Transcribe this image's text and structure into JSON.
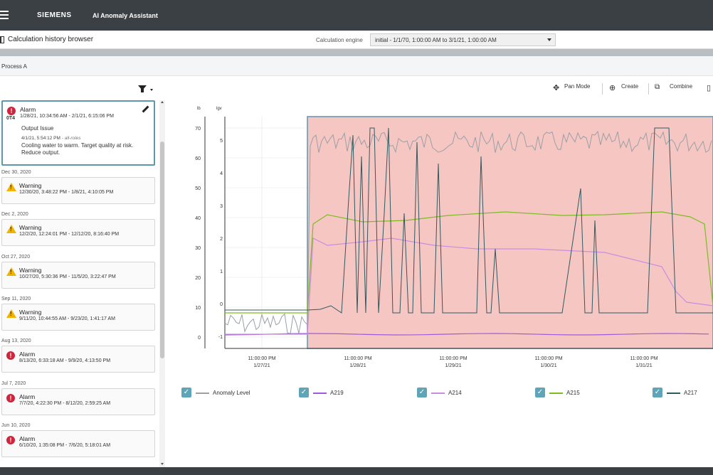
{
  "header": {
    "brand": "SIEMENS",
    "app_title": "AI Anomaly Assistant"
  },
  "toolbar": {
    "page_title": "Calculation history browser",
    "engine_label": "Calculation engine",
    "engine_value": "initial - 1/1/70, 1:00:00 AM to 3/1/21, 1:00:00 AM"
  },
  "process": {
    "label": "Process A"
  },
  "selected_event": {
    "type": "Alarm",
    "range": "1/28/21, 10:34:56 AM - 2/1/21, 6:15:06 PM",
    "issue": "Output Issue",
    "timestamp": "4/1/21, 5:54:12 PM",
    "roles": "- all-roles",
    "note": "Cooling water to warm. Target quality at risk. Reduce output.",
    "tag": "0T4"
  },
  "events": [
    {
      "date": "Dec 30, 2020",
      "type": "Warning",
      "range": "12/30/20, 3:48:22 PM - 1/8/21, 4:10:05 PM"
    },
    {
      "date": "Dec 2, 2020",
      "type": "Warning",
      "range": "12/2/20, 12:24:01 PM - 12/12/20, 8:16:40 PM"
    },
    {
      "date": "Oct 27, 2020",
      "type": "Warning",
      "range": "10/27/20, 5:30:36 PM - 11/5/20, 3:22:47 PM"
    },
    {
      "date": "Sep 11, 2020",
      "type": "Warning",
      "range": "9/11/20, 10:44:55 AM - 9/23/20, 1:41:17 AM"
    },
    {
      "date": "Aug 13, 2020",
      "type": "Alarm",
      "range": "8/13/20, 6:33:18 AM - 9/9/20, 4:13:50 PM"
    },
    {
      "date": "Jul 7, 2020",
      "type": "Alarm",
      "range": "7/7/20, 4:22:30 PM - 8/12/20, 2:59:25 AM"
    },
    {
      "date": "Jun 10, 2020",
      "type": "Alarm",
      "range": "6/10/20, 1:35:08 PM - 7/6/20, 5:18:01 AM"
    }
  ],
  "chart_toolbar": {
    "pan": "Pan Mode",
    "create": "Create",
    "combine": "Combine"
  },
  "chart_data": {
    "type": "line",
    "y_left_label": "lb",
    "y_right_label": "lgv",
    "y_left_ticks": [
      "70",
      "60",
      "50",
      "40",
      "30",
      "20",
      "10",
      "0"
    ],
    "y_right_ticks": [
      "5",
      "4",
      "3",
      "2",
      "1",
      "0",
      "-1"
    ],
    "x_ticks": [
      {
        "time": "11:00:00 PM",
        "date": "1/27/21"
      },
      {
        "time": "11:00:00 PM",
        "date": "1/28/21"
      },
      {
        "time": "11:00:00 PM",
        "date": "1/29/21"
      },
      {
        "time": "11:00:00 PM",
        "date": "1/30/21"
      },
      {
        "time": "11:00:00 PM",
        "date": "1/31/21"
      }
    ],
    "highlight_color": "#f6c6c3",
    "series": [
      {
        "name": "Anomaly Level",
        "color": "#9aa0a5"
      },
      {
        "name": "A219",
        "color": "#9c5cd9"
      },
      {
        "name": "A214",
        "color": "#c98de0"
      },
      {
        "name": "A215",
        "color": "#7dbb25"
      },
      {
        "name": "A217",
        "color": "#2f5a60"
      }
    ]
  }
}
